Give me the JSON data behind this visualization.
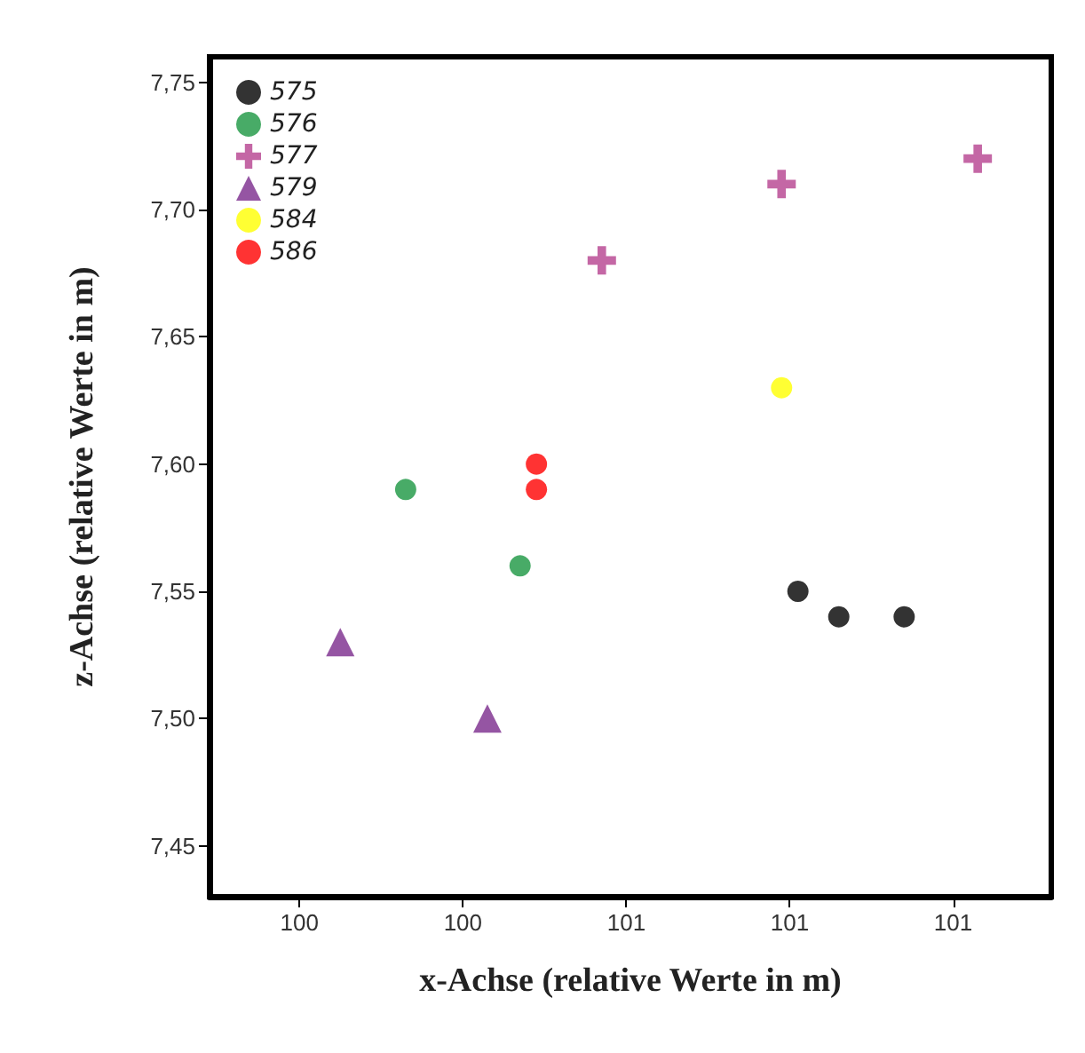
{
  "chart_data": {
    "type": "scatter",
    "xlabel": "x-Achse (relative Werte in m)",
    "ylabel": "z-Achse (relative Werte in m)",
    "xlim": [
      100.09,
      101.12
    ],
    "xticks": [
      {
        "value": 100.2,
        "label": "100"
      },
      {
        "value": 100.4,
        "label": "100"
      },
      {
        "value": 100.6,
        "label": "101"
      },
      {
        "value": 100.8,
        "label": "101"
      },
      {
        "value": 101.0,
        "label": "101"
      }
    ],
    "ylim": [
      7.43,
      7.76
    ],
    "yticks": [
      {
        "value": 7.45,
        "label": "7,45"
      },
      {
        "value": 7.5,
        "label": "7,50"
      },
      {
        "value": 7.55,
        "label": "7,55"
      },
      {
        "value": 7.6,
        "label": "7,60"
      },
      {
        "value": 7.65,
        "label": "7,65"
      },
      {
        "value": 7.7,
        "label": "7,70"
      },
      {
        "value": 7.75,
        "label": "7,75"
      }
    ],
    "grid": false,
    "legend": "top left",
    "series": [
      {
        "name": "575",
        "color": "#000000",
        "marker": "circle",
        "x": [
          100.81,
          100.86,
          100.94
        ],
        "values": [
          7.55,
          7.54,
          7.54
        ]
      },
      {
        "name": "576",
        "color": "#1a9641",
        "marker": "circle",
        "x": [
          100.33,
          100.47
        ],
        "values": [
          7.59,
          7.56
        ]
      },
      {
        "name": "577",
        "color": "#b5418f",
        "marker": "cross",
        "x": [
          100.57,
          100.79,
          101.03
        ],
        "values": [
          7.68,
          7.71,
          7.72
        ]
      },
      {
        "name": "579",
        "color": "#7b2a8c",
        "marker": "triangle",
        "x": [
          100.25,
          100.43
        ],
        "values": [
          7.53,
          7.5
        ]
      },
      {
        "name": "584",
        "color": "#ffff00",
        "marker": "circle",
        "x": [
          100.79
        ],
        "values": [
          7.63
        ]
      },
      {
        "name": "586",
        "color": "#ff0000",
        "marker": "circle",
        "x": [
          100.49,
          100.49
        ],
        "values": [
          7.6,
          7.59
        ]
      }
    ]
  }
}
